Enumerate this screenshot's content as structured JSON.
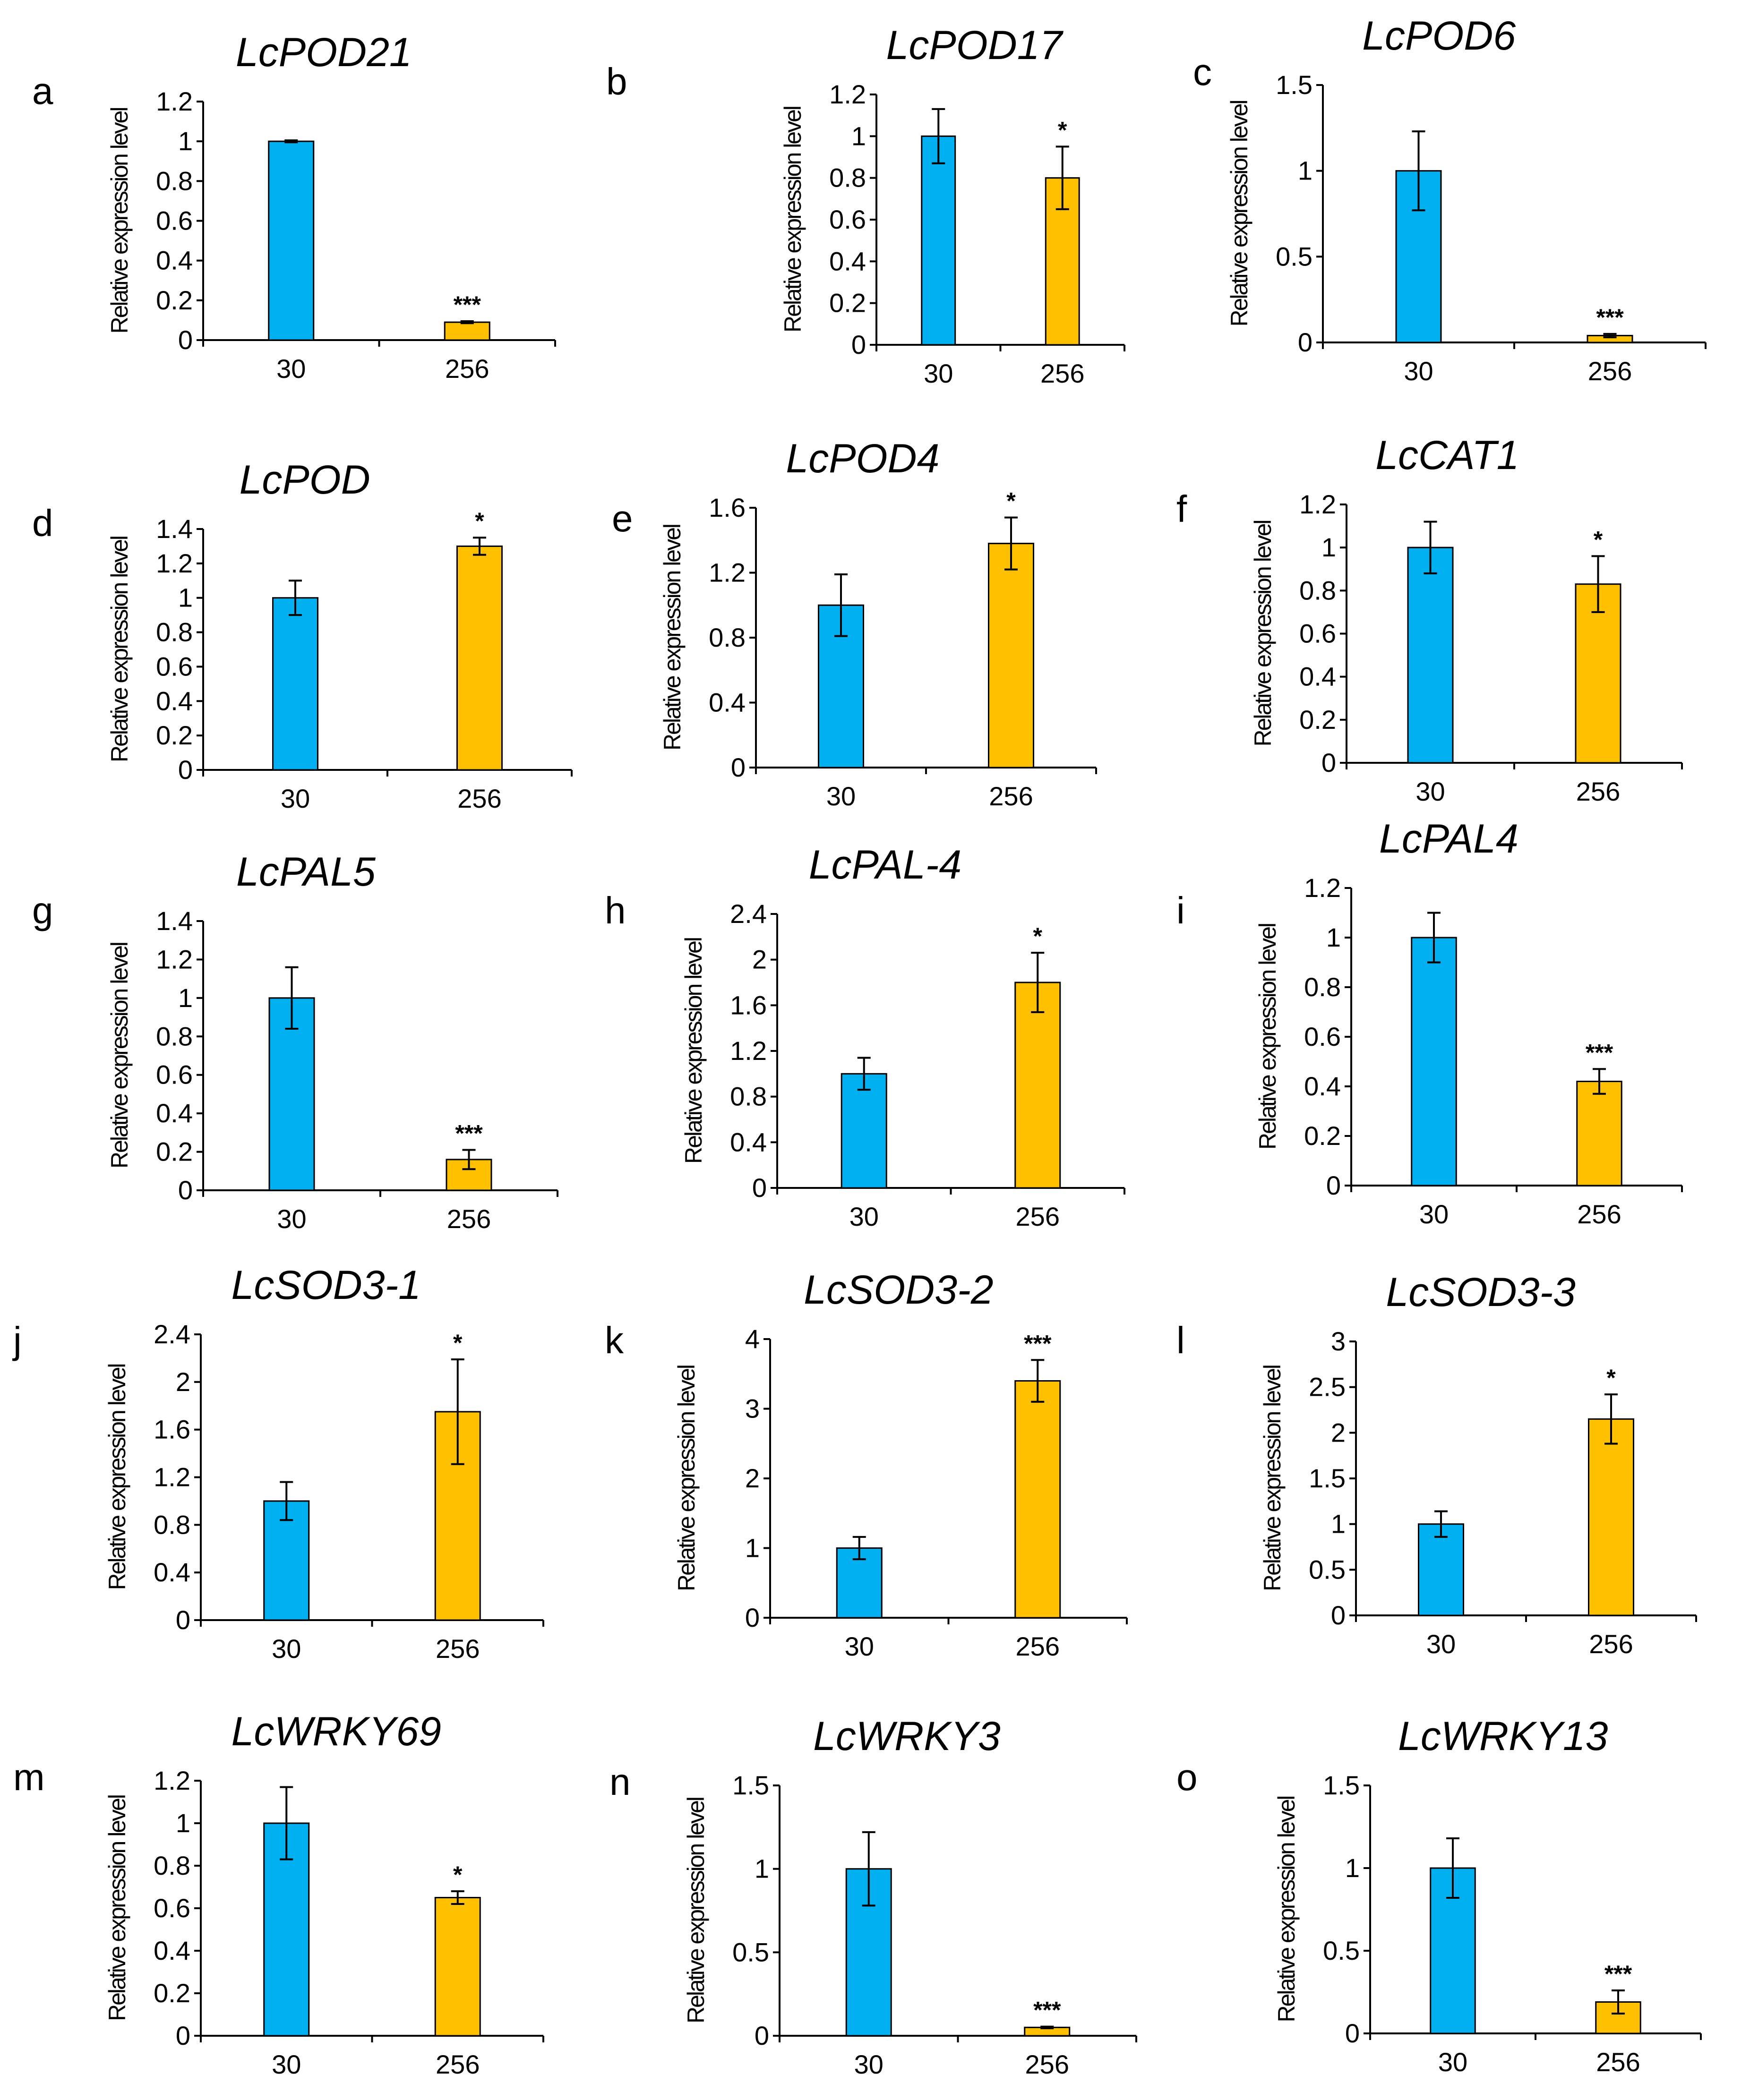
{
  "chart_data": [
    {
      "letter": "a",
      "type": "bar",
      "title": "LcPOD21",
      "ylabel": "Relative expression level",
      "categories": [
        "30",
        "256"
      ],
      "values": [
        1.0,
        0.09
      ],
      "errors": [
        0.005,
        0.005
      ],
      "significance": [
        "",
        "***"
      ],
      "ylim": [
        0,
        1.2
      ],
      "yticks": [
        "0",
        "0.2",
        "0.4",
        "0.6",
        "0.8",
        "1",
        "1.2"
      ],
      "colors": [
        "#00B0F0",
        "#FFC000"
      ]
    },
    {
      "letter": "b",
      "type": "bar",
      "title": "LcPOD17",
      "ylabel": "Relative expression level",
      "categories": [
        "30",
        "256"
      ],
      "values": [
        1.0,
        0.8
      ],
      "errors": [
        0.13,
        0.15
      ],
      "significance": [
        "",
        "*"
      ],
      "ylim": [
        0,
        1.2
      ],
      "yticks": [
        "0",
        "0.2",
        "0.4",
        "0.6",
        "0.8",
        "1",
        "1.2"
      ],
      "colors": [
        "#00B0F0",
        "#FFC000"
      ]
    },
    {
      "letter": "c",
      "type": "bar",
      "title": "LcPOD6",
      "ylabel": "Relative expression level",
      "categories": [
        "30",
        "256"
      ],
      "values": [
        1.0,
        0.04
      ],
      "errors": [
        0.23,
        0.01
      ],
      "significance": [
        "",
        "***"
      ],
      "ylim": [
        0,
        1.5
      ],
      "yticks": [
        "0",
        "0.5",
        "1",
        "1.5"
      ],
      "colors": [
        "#00B0F0",
        "#FFC000"
      ]
    },
    {
      "letter": "d",
      "type": "bar",
      "title": "LcPOD",
      "ylabel": "Relative expression level",
      "categories": [
        "30",
        "256"
      ],
      "values": [
        1.0,
        1.3
      ],
      "errors": [
        0.1,
        0.05
      ],
      "significance": [
        "",
        "*"
      ],
      "ylim": [
        0,
        1.4
      ],
      "yticks": [
        "0",
        "0.2",
        "0.4",
        "0.6",
        "0.8",
        "1",
        "1.2",
        "1.4"
      ],
      "colors": [
        "#00B0F0",
        "#FFC000"
      ]
    },
    {
      "letter": "e",
      "type": "bar",
      "title": "LcPOD4",
      "ylabel": "Relative expression level",
      "categories": [
        "30",
        "256"
      ],
      "values": [
        1.0,
        1.38
      ],
      "errors": [
        0.19,
        0.16
      ],
      "significance": [
        "",
        "*"
      ],
      "ylim": [
        0,
        1.6
      ],
      "yticks": [
        "0",
        "0.4",
        "0.8",
        "1.2",
        "1.6"
      ],
      "colors": [
        "#00B0F0",
        "#FFC000"
      ]
    },
    {
      "letter": "f",
      "type": "bar",
      "title": "LcCAT1",
      "ylabel": "Relative expression level",
      "categories": [
        "30",
        "256"
      ],
      "values": [
        1.0,
        0.83
      ],
      "errors": [
        0.12,
        0.13
      ],
      "significance": [
        "",
        "*"
      ],
      "ylim": [
        0,
        1.2
      ],
      "yticks": [
        "0",
        "0.2",
        "0.4",
        "0.6",
        "0.8",
        "1",
        "1.2"
      ],
      "colors": [
        "#00B0F0",
        "#FFC000"
      ]
    },
    {
      "letter": "g",
      "type": "bar",
      "title": "LcPAL5",
      "ylabel": "Relative expression level",
      "categories": [
        "30",
        "256"
      ],
      "values": [
        1.0,
        0.16
      ],
      "errors": [
        0.16,
        0.05
      ],
      "significance": [
        "",
        "***"
      ],
      "ylim": [
        0,
        1.4
      ],
      "yticks": [
        "0",
        "0.2",
        "0.4",
        "0.6",
        "0.8",
        "1",
        "1.2",
        "1.4"
      ],
      "colors": [
        "#00B0F0",
        "#FFC000"
      ]
    },
    {
      "letter": "h",
      "type": "bar",
      "title": "LcPAL-4",
      "ylabel": "Relative expression level",
      "categories": [
        "30",
        "256"
      ],
      "values": [
        1.0,
        1.8
      ],
      "errors": [
        0.14,
        0.26
      ],
      "significance": [
        "",
        "*"
      ],
      "ylim": [
        0,
        2.4
      ],
      "yticks": [
        "0",
        "0.4",
        "0.8",
        "1.2",
        "1.6",
        "2",
        "2.4"
      ],
      "colors": [
        "#00B0F0",
        "#FFC000"
      ]
    },
    {
      "letter": "i",
      "type": "bar",
      "title": "LcPAL4",
      "ylabel": "Relative expression level",
      "categories": [
        "30",
        "256"
      ],
      "values": [
        1.0,
        0.42
      ],
      "errors": [
        0.1,
        0.05
      ],
      "significance": [
        "",
        "***"
      ],
      "ylim": [
        0,
        1.2
      ],
      "yticks": [
        "0",
        "0.2",
        "0.4",
        "0.6",
        "0.8",
        "1",
        "1.2"
      ],
      "colors": [
        "#00B0F0",
        "#FFC000"
      ]
    },
    {
      "letter": "j",
      "type": "bar",
      "title": "LcSOD3-1",
      "ylabel": "Relative expression level",
      "categories": [
        "30",
        "256"
      ],
      "values": [
        1.0,
        1.75
      ],
      "errors": [
        0.16,
        0.44
      ],
      "significance": [
        "",
        "*"
      ],
      "ylim": [
        0,
        2.4
      ],
      "yticks": [
        "0",
        "0.4",
        "0.8",
        "1.2",
        "1.6",
        "2",
        "2.4"
      ],
      "colors": [
        "#00B0F0",
        "#FFC000"
      ]
    },
    {
      "letter": "k",
      "type": "bar",
      "title": "LcSOD3-2",
      "ylabel": "Relative expression level",
      "categories": [
        "30",
        "256"
      ],
      "values": [
        1.0,
        3.4
      ],
      "errors": [
        0.16,
        0.3
      ],
      "significance": [
        "",
        "***"
      ],
      "ylim": [
        0,
        4
      ],
      "yticks": [
        "0",
        "1",
        "2",
        "3",
        "4"
      ],
      "colors": [
        "#00B0F0",
        "#FFC000"
      ]
    },
    {
      "letter": "l",
      "type": "bar",
      "title": "LcSOD3-3",
      "ylabel": "Relative expression level",
      "categories": [
        "30",
        "256"
      ],
      "values": [
        1.0,
        2.15
      ],
      "errors": [
        0.14,
        0.27
      ],
      "significance": [
        "",
        "*"
      ],
      "ylim": [
        0,
        3
      ],
      "yticks": [
        "0",
        "0.5",
        "1",
        "1.5",
        "2",
        "2.5",
        "3"
      ],
      "colors": [
        "#00B0F0",
        "#FFC000"
      ]
    },
    {
      "letter": "m",
      "type": "bar",
      "title": "LcWRKY69",
      "ylabel": "Relative expression level",
      "categories": [
        "30",
        "256"
      ],
      "values": [
        1.0,
        0.65
      ],
      "errors": [
        0.17,
        0.03
      ],
      "significance": [
        "",
        "*"
      ],
      "ylim": [
        0,
        1.2
      ],
      "yticks": [
        "0",
        "0.2",
        "0.4",
        "0.6",
        "0.8",
        "1",
        "1.2"
      ],
      "colors": [
        "#00B0F0",
        "#FFC000"
      ]
    },
    {
      "letter": "n",
      "type": "bar",
      "title": "LcWRKY3",
      "ylabel": "Relative expression level",
      "categories": [
        "30",
        "256"
      ],
      "values": [
        1.0,
        0.05
      ],
      "errors": [
        0.22,
        0.005
      ],
      "significance": [
        "",
        "***"
      ],
      "ylim": [
        0,
        1.5
      ],
      "yticks": [
        "0",
        "0.5",
        "1",
        "1.5"
      ],
      "colors": [
        "#00B0F0",
        "#FFC000"
      ]
    },
    {
      "letter": "o",
      "type": "bar",
      "title": "LcWRKY13",
      "ylabel": "Relative expression level",
      "categories": [
        "30",
        "256"
      ],
      "values": [
        1.0,
        0.19
      ],
      "errors": [
        0.18,
        0.07
      ],
      "significance": [
        "",
        "***"
      ],
      "ylim": [
        0,
        1.5
      ],
      "yticks": [
        "0",
        "0.5",
        "1",
        "1.5"
      ],
      "colors": [
        "#00B0F0",
        "#FFC000"
      ]
    }
  ]
}
